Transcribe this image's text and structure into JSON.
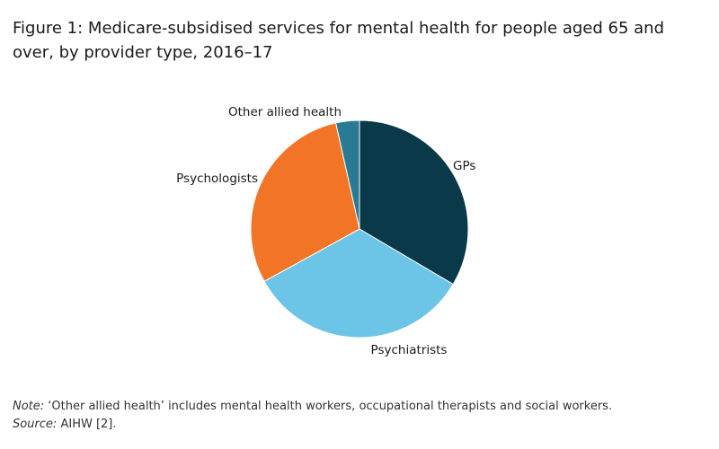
{
  "title": "Figure 1: Medicare-subsidised services for mental health for people aged 65 and over, by provider type, 2016–17",
  "chart_data": {
    "type": "pie",
    "title": "Figure 1: Medicare-subsidised services for mental health for people aged 65 and over, by provider type, 2016–17",
    "unit": "percent",
    "slices": [
      {
        "label": "GPs",
        "value": 33.5,
        "color": "#0a3a4a"
      },
      {
        "label": "Psychiatrists",
        "value": 33.5,
        "color": "#6cc5e6"
      },
      {
        "label": "Psychologists",
        "value": 29.5,
        "color": "#f27527"
      },
      {
        "label": "Other allied health",
        "value": 3.5,
        "color": "#2a7a94"
      }
    ],
    "start_angle": "12 o'clock",
    "direction": "clockwise",
    "legend": "none (direct labels)"
  },
  "note": {
    "prefix": "Note:",
    "text": " ‘Other allied health’ includes mental health workers, occupational therapists and social workers."
  },
  "source": {
    "prefix": "Source:",
    "text": " AIHW [2]."
  }
}
